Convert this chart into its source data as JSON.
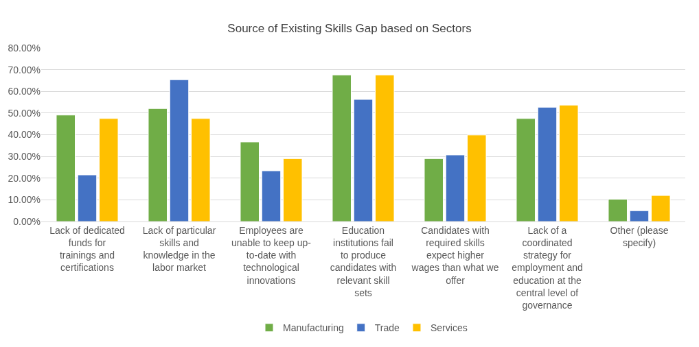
{
  "chart_data": {
    "type": "bar",
    "title": "Source of Existing Skills Gap based on Sectors",
    "categories": [
      "Lack of dedicated funds for trainings and certifications",
      "Lack of particular skills and knowledge in the labor market",
      "Employees are unable to keep up-to-date with technological innovations",
      "Education institutions fail to produce candidates with relevant skill sets",
      "Candidates with required skills expect higher wages than what we offer",
      "Lack of a coordinated strategy for employment and education at the central level of governance",
      "Other (please specify)"
    ],
    "series": [
      {
        "name": "Manufacturing",
        "color": "#70ad47",
        "values": [
          49.1,
          52.1,
          36.7,
          67.6,
          29.0,
          47.5,
          10.3
        ]
      },
      {
        "name": "Trade",
        "color": "#4472c4",
        "values": [
          21.5,
          65.4,
          23.4,
          56.3,
          30.7,
          52.7,
          5.0
        ]
      },
      {
        "name": "Services",
        "color": "#ffc000",
        "values": [
          47.5,
          47.5,
          29.0,
          67.6,
          39.9,
          53.7,
          12.0
        ]
      }
    ],
    "ylim": [
      0,
      80
    ],
    "yticks": [
      {
        "value": 0,
        "label": "0.00%"
      },
      {
        "value": 10,
        "label": "10.00%"
      },
      {
        "value": 20,
        "label": "20.00%"
      },
      {
        "value": 30,
        "label": "30.00%"
      },
      {
        "value": 40,
        "label": "40.00%"
      },
      {
        "value": 50,
        "label": "50.00%"
      },
      {
        "value": 60,
        "label": "60.00%"
      },
      {
        "value": 70,
        "label": "70.00%"
      },
      {
        "value": 80,
        "label": "80.00%"
      }
    ],
    "grid": "y",
    "legend": "bottom"
  }
}
